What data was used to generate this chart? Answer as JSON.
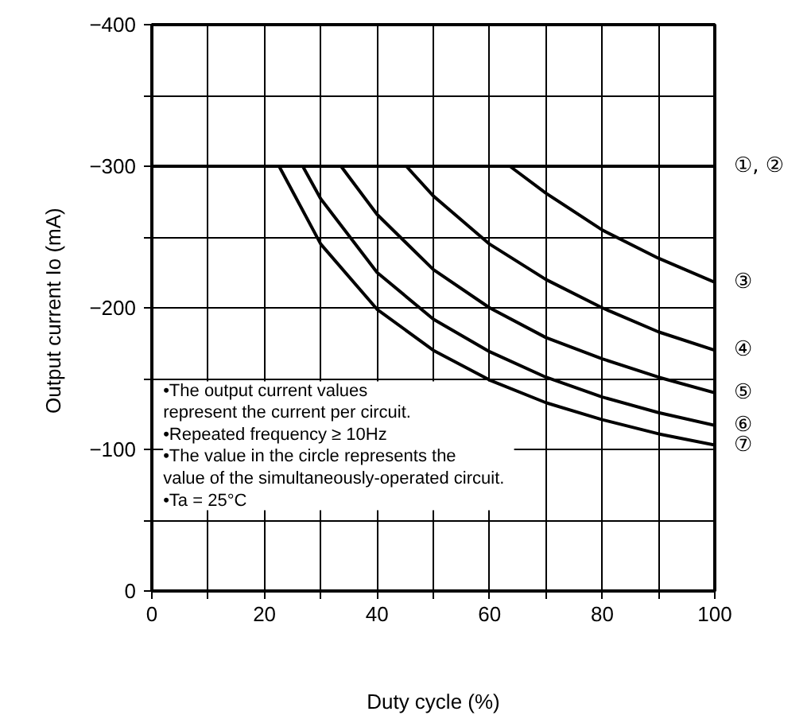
{
  "chart_data": {
    "type": "line",
    "xlabel": "Duty cycle (%)",
    "ylabel": "Output current  Io (mA)",
    "annotations": [
      "•The output current values\n  represent the current per circuit.",
      "•Repeated frequency ≥ 10Hz",
      "•The value in the circle represents the\n  value of the simultaneously-operated circuit.",
      "•Ta = 25°C"
    ],
    "series": [
      {
        "name": "①, ②",
        "color": "#000000",
        "x": [
          0,
          20,
          40,
          60,
          80,
          100
        ],
        "values": [
          -300,
          -300,
          -300,
          -300,
          -300,
          -300
        ]
      },
      {
        "name": "③",
        "color": "#000000",
        "x": [
          63.6,
          70,
          80,
          90,
          100
        ],
        "values": [
          -300,
          -281,
          -255,
          -235,
          -218
        ]
      },
      {
        "name": "④",
        "color": "#000000",
        "x": [
          45.2,
          50,
          60,
          70,
          80,
          90,
          100
        ],
        "values": [
          -300,
          -279,
          -245,
          -220,
          -200,
          -183,
          -170
        ]
      },
      {
        "name": "⑤",
        "color": "#000000",
        "x": [
          33.6,
          40,
          50,
          60,
          70,
          80,
          90,
          100
        ],
        "values": [
          -300,
          -266,
          -227,
          -200,
          -179,
          -164,
          -151,
          -140
        ]
      },
      {
        "name": "⑥",
        "color": "#000000",
        "x": [
          26.8,
          30,
          40,
          50,
          60,
          70,
          80,
          90,
          100
        ],
        "values": [
          -300,
          -277,
          -225,
          -192,
          -169,
          -151,
          -137,
          -126,
          -117
        ]
      },
      {
        "name": "⑦",
        "color": "#000000",
        "x": [
          22.6,
          30,
          40,
          50,
          60,
          70,
          80,
          90,
          100
        ],
        "values": [
          -300,
          -245,
          -199,
          -170,
          -149,
          -133,
          -121,
          -111,
          -103
        ]
      }
    ],
    "xlim": [
      0,
      100
    ],
    "xticks": [
      0,
      {
        "value": 10,
        "label": null
      },
      20,
      {
        "value": 30,
        "label": null
      },
      40,
      {
        "value": 50,
        "label": null
      },
      60,
      {
        "value": 70,
        "label": null
      },
      80,
      {
        "value": 90,
        "label": null
      },
      100
    ],
    "ylim": [
      0,
      -400
    ],
    "yticks": [
      {
        "value": 0,
        "label": "0"
      },
      {
        "value": -50,
        "label": null
      },
      {
        "value": -100,
        "label": "−100"
      },
      {
        "value": -150,
        "label": null
      },
      {
        "value": -200,
        "label": "−200"
      },
      {
        "value": -250,
        "label": null
      },
      {
        "value": -300,
        "label": "−300"
      },
      {
        "value": -350,
        "label": null
      },
      {
        "value": -400,
        "label": "−400"
      }
    ],
    "grid": true,
    "line_style": "solid"
  }
}
